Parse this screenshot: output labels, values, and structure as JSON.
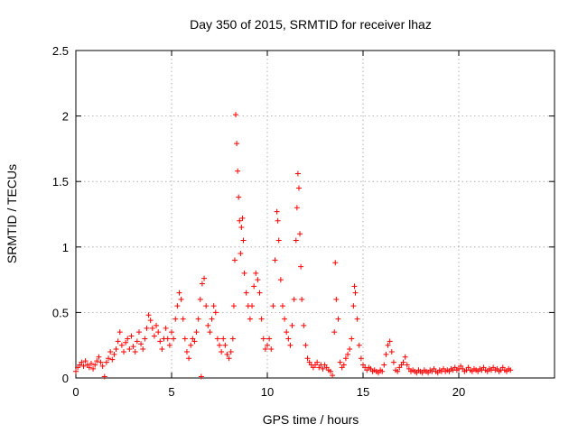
{
  "chart_data": {
    "type": "scatter",
    "title": "Day 350 of 2015, SRMTID for receiver lhaz",
    "xlabel": "GPS time / hours",
    "ylabel": "SRMTID / TECUs",
    "xlim": [
      0,
      25
    ],
    "ylim": [
      0,
      2.5
    ],
    "xticks": [
      0,
      5,
      10,
      15,
      20
    ],
    "xtick_labels": [
      "0",
      "5",
      "10",
      "15",
      "20"
    ],
    "yticks": [
      0,
      0.5,
      1,
      1.5,
      2,
      2.5
    ],
    "ytick_labels": [
      "0",
      "0.5",
      "1",
      "1.5",
      "2",
      "2.5"
    ],
    "grid": true,
    "marker": "+",
    "series": [
      {
        "name": "SRMTID",
        "color": "#ff0000",
        "points": [
          [
            0.0,
            0.05
          ],
          [
            0.1,
            0.08
          ],
          [
            0.2,
            0.1
          ],
          [
            0.3,
            0.12
          ],
          [
            0.4,
            0.09
          ],
          [
            0.5,
            0.13
          ],
          [
            0.6,
            0.1
          ],
          [
            0.7,
            0.08
          ],
          [
            0.8,
            0.11
          ],
          [
            0.9,
            0.07
          ],
          [
            1.0,
            0.1
          ],
          [
            1.1,
            0.13
          ],
          [
            1.2,
            0.16
          ],
          [
            1.3,
            0.12
          ],
          [
            1.4,
            0.09
          ],
          [
            1.5,
            0.01
          ],
          [
            1.6,
            0.12
          ],
          [
            1.7,
            0.15
          ],
          [
            1.8,
            0.2
          ],
          [
            1.9,
            0.14
          ],
          [
            2.0,
            0.18
          ],
          [
            2.1,
            0.22
          ],
          [
            2.2,
            0.28
          ],
          [
            2.3,
            0.35
          ],
          [
            2.4,
            0.25
          ],
          [
            2.5,
            0.2
          ],
          [
            2.6,
            0.27
          ],
          [
            2.7,
            0.3
          ],
          [
            2.8,
            0.22
          ],
          [
            2.9,
            0.32
          ],
          [
            3.0,
            0.24
          ],
          [
            3.1,
            0.2
          ],
          [
            3.2,
            0.28
          ],
          [
            3.3,
            0.35
          ],
          [
            3.4,
            0.26
          ],
          [
            3.5,
            0.22
          ],
          [
            3.6,
            0.3
          ],
          [
            3.7,
            0.38
          ],
          [
            3.8,
            0.48
          ],
          [
            3.9,
            0.44
          ],
          [
            4.0,
            0.38
          ],
          [
            4.1,
            0.32
          ],
          [
            4.2,
            0.4
          ],
          [
            4.3,
            0.35
          ],
          [
            4.4,
            0.28
          ],
          [
            4.5,
            0.22
          ],
          [
            4.6,
            0.3
          ],
          [
            4.7,
            0.38
          ],
          [
            4.8,
            0.3
          ],
          [
            4.9,
            0.25
          ],
          [
            5.0,
            0.35
          ],
          [
            5.1,
            0.3
          ],
          [
            5.2,
            0.45
          ],
          [
            5.3,
            0.55
          ],
          [
            5.4,
            0.65
          ],
          [
            5.5,
            0.6
          ],
          [
            5.6,
            0.45
          ],
          [
            5.7,
            0.3
          ],
          [
            5.8,
            0.2
          ],
          [
            5.9,
            0.15
          ],
          [
            6.0,
            0.25
          ],
          [
            6.1,
            0.3
          ],
          [
            6.2,
            0.28
          ],
          [
            6.3,
            0.35
          ],
          [
            6.4,
            0.45
          ],
          [
            6.5,
            0.6
          ],
          [
            6.55,
            0.01
          ],
          [
            6.6,
            0.72
          ],
          [
            6.7,
            0.76
          ],
          [
            6.8,
            0.55
          ],
          [
            6.9,
            0.4
          ],
          [
            7.0,
            0.35
          ],
          [
            7.1,
            0.45
          ],
          [
            7.2,
            0.55
          ],
          [
            7.3,
            0.5
          ],
          [
            7.4,
            0.3
          ],
          [
            7.5,
            0.25
          ],
          [
            7.6,
            0.2
          ],
          [
            7.7,
            0.3
          ],
          [
            7.8,
            0.25
          ],
          [
            7.9,
            0.18
          ],
          [
            8.0,
            0.15
          ],
          [
            8.1,
            0.2
          ],
          [
            8.2,
            0.3
          ],
          [
            8.25,
            0.55
          ],
          [
            8.3,
            0.9
          ],
          [
            8.35,
            2.01
          ],
          [
            8.4,
            1.79
          ],
          [
            8.45,
            1.58
          ],
          [
            8.5,
            1.38
          ],
          [
            8.55,
            1.2
          ],
          [
            8.6,
            0.95
          ],
          [
            8.65,
            1.15
          ],
          [
            8.7,
            1.22
          ],
          [
            8.75,
            1.05
          ],
          [
            8.8,
            0.8
          ],
          [
            8.9,
            0.65
          ],
          [
            9.0,
            0.55
          ],
          [
            9.1,
            0.45
          ],
          [
            9.2,
            0.55
          ],
          [
            9.3,
            0.7
          ],
          [
            9.4,
            0.8
          ],
          [
            9.5,
            0.75
          ],
          [
            9.6,
            0.65
          ],
          [
            9.7,
            0.45
          ],
          [
            9.8,
            0.3
          ],
          [
            9.9,
            0.22
          ],
          [
            10.0,
            0.25
          ],
          [
            10.1,
            0.3
          ],
          [
            10.2,
            0.22
          ],
          [
            10.3,
            0.55
          ],
          [
            10.4,
            0.9
          ],
          [
            10.5,
            1.27
          ],
          [
            10.55,
            1.2
          ],
          [
            10.6,
            1.05
          ],
          [
            10.7,
            0.75
          ],
          [
            10.8,
            0.55
          ],
          [
            10.9,
            0.45
          ],
          [
            11.0,
            0.35
          ],
          [
            11.1,
            0.3
          ],
          [
            11.2,
            0.25
          ],
          [
            11.3,
            0.4
          ],
          [
            11.4,
            0.6
          ],
          [
            11.5,
            1.05
          ],
          [
            11.55,
            1.3
          ],
          [
            11.6,
            1.56
          ],
          [
            11.65,
            1.45
          ],
          [
            11.7,
            1.1
          ],
          [
            11.75,
            0.85
          ],
          [
            11.8,
            0.6
          ],
          [
            11.9,
            0.4
          ],
          [
            12.0,
            0.25
          ],
          [
            12.1,
            0.15
          ],
          [
            12.2,
            0.12
          ],
          [
            12.3,
            0.1
          ],
          [
            12.4,
            0.08
          ],
          [
            12.5,
            0.1
          ],
          [
            12.6,
            0.12
          ],
          [
            12.7,
            0.08
          ],
          [
            12.8,
            0.1
          ],
          [
            12.9,
            0.07
          ],
          [
            13.0,
            0.1
          ],
          [
            13.1,
            0.08
          ],
          [
            13.2,
            0.06
          ],
          [
            13.3,
            0.05
          ],
          [
            13.4,
            0.02
          ],
          [
            13.5,
            0.35
          ],
          [
            13.55,
            0.88
          ],
          [
            13.6,
            0.6
          ],
          [
            13.7,
            0.45
          ],
          [
            13.8,
            0.12
          ],
          [
            13.9,
            0.08
          ],
          [
            14.0,
            0.1
          ],
          [
            14.1,
            0.15
          ],
          [
            14.2,
            0.18
          ],
          [
            14.3,
            0.22
          ],
          [
            14.4,
            0.3
          ],
          [
            14.5,
            0.55
          ],
          [
            14.55,
            0.7
          ],
          [
            14.6,
            0.65
          ],
          [
            14.7,
            0.45
          ],
          [
            14.8,
            0.25
          ],
          [
            14.9,
            0.15
          ],
          [
            15.0,
            0.1
          ],
          [
            15.1,
            0.08
          ],
          [
            15.2,
            0.06
          ],
          [
            15.3,
            0.08
          ],
          [
            15.4,
            0.07
          ],
          [
            15.5,
            0.05
          ],
          [
            15.6,
            0.06
          ],
          [
            15.7,
            0.05
          ],
          [
            15.8,
            0.04
          ],
          [
            15.9,
            0.06
          ],
          [
            16.0,
            0.05
          ],
          [
            16.1,
            0.1
          ],
          [
            16.2,
            0.18
          ],
          [
            16.3,
            0.25
          ],
          [
            16.4,
            0.28
          ],
          [
            16.5,
            0.2
          ],
          [
            16.6,
            0.12
          ],
          [
            16.7,
            0.06
          ],
          [
            16.8,
            0.05
          ],
          [
            16.9,
            0.08
          ],
          [
            17.0,
            0.1
          ],
          [
            17.1,
            0.12
          ],
          [
            17.2,
            0.16
          ],
          [
            17.3,
            0.1
          ],
          [
            17.4,
            0.07
          ],
          [
            17.5,
            0.05
          ],
          [
            17.6,
            0.06
          ],
          [
            17.7,
            0.05
          ],
          [
            17.8,
            0.04
          ],
          [
            17.9,
            0.06
          ],
          [
            18.0,
            0.05
          ],
          [
            18.1,
            0.04
          ],
          [
            18.2,
            0.06
          ],
          [
            18.3,
            0.05
          ],
          [
            18.4,
            0.04
          ],
          [
            18.5,
            0.06
          ],
          [
            18.6,
            0.05
          ],
          [
            18.7,
            0.07
          ],
          [
            18.8,
            0.05
          ],
          [
            18.9,
            0.04
          ],
          [
            19.0,
            0.06
          ],
          [
            19.1,
            0.05
          ],
          [
            19.2,
            0.07
          ],
          [
            19.3,
            0.05
          ],
          [
            19.4,
            0.06
          ],
          [
            19.5,
            0.05
          ],
          [
            19.6,
            0.07
          ],
          [
            19.7,
            0.06
          ],
          [
            19.8,
            0.08
          ],
          [
            19.9,
            0.06
          ],
          [
            20.0,
            0.07
          ],
          [
            20.1,
            0.09
          ],
          [
            20.2,
            0.07
          ],
          [
            20.3,
            0.05
          ],
          [
            20.4,
            0.06
          ],
          [
            20.5,
            0.08
          ],
          [
            20.6,
            0.06
          ],
          [
            20.7,
            0.05
          ],
          [
            20.8,
            0.07
          ],
          [
            20.9,
            0.06
          ],
          [
            21.0,
            0.05
          ],
          [
            21.1,
            0.07
          ],
          [
            21.2,
            0.06
          ],
          [
            21.3,
            0.08
          ],
          [
            21.4,
            0.06
          ],
          [
            21.5,
            0.05
          ],
          [
            21.6,
            0.07
          ],
          [
            21.7,
            0.06
          ],
          [
            21.8,
            0.08
          ],
          [
            21.9,
            0.06
          ],
          [
            22.0,
            0.07
          ],
          [
            22.1,
            0.05
          ],
          [
            22.2,
            0.06
          ],
          [
            22.3,
            0.08
          ],
          [
            22.4,
            0.06
          ],
          [
            22.5,
            0.05
          ],
          [
            22.6,
            0.07
          ],
          [
            22.7,
            0.06
          ]
        ]
      }
    ]
  }
}
